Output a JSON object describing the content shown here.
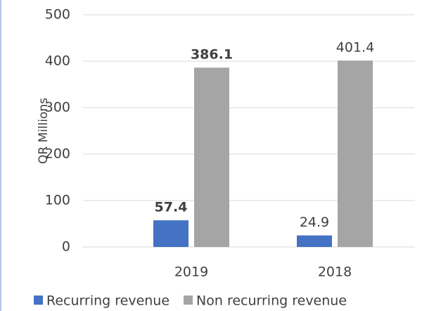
{
  "chart_data": {
    "type": "bar",
    "y_label": "QR Millions",
    "categories": [
      "2019",
      "2018"
    ],
    "series": [
      {
        "name": "Recurring revenue",
        "color": "#4472c4",
        "values": [
          57.4,
          24.9
        ]
      },
      {
        "name": "Non recurring revenue",
        "color": "#a5a5a5",
        "values": [
          386.1,
          401.4
        ]
      }
    ],
    "bold_value_labels": [
      true,
      false
    ],
    "ylim": [
      0,
      500
    ],
    "yticks": [
      0,
      100,
      200,
      300,
      400,
      500
    ],
    "grid": true,
    "legend": "bottom"
  }
}
